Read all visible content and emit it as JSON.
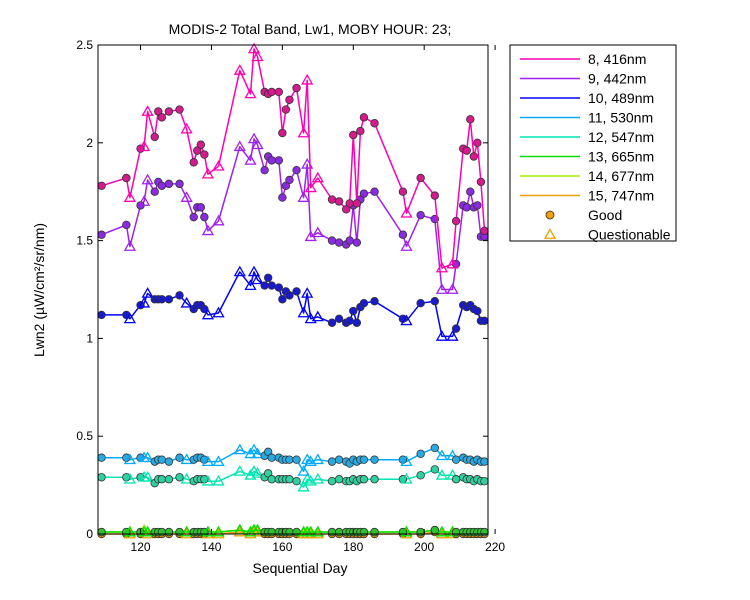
{
  "chart_data": {
    "type": "line",
    "title": "MODIS-2 Total Band, Lw1, MOBY HOUR: 23;",
    "xlabel": "Sequential Day",
    "ylabel": "Lwn2 (µW/cm²/sr/nm)",
    "xlim": [
      108,
      218
    ],
    "ylim": [
      0,
      2.5
    ],
    "xticks": [
      120,
      140,
      160,
      180,
      200,
      220
    ],
    "yticks": [
      0,
      0.5,
      1,
      1.5,
      2,
      2.5
    ],
    "ytick_labels": [
      "0",
      "0.5",
      "1",
      "1.5",
      "2",
      "2.5"
    ],
    "legend_position": "outside-right",
    "x": [
      109,
      116,
      117,
      120,
      121,
      122,
      124,
      125,
      126,
      128,
      131,
      133,
      135,
      136,
      137,
      138,
      139,
      142,
      148,
      151,
      152,
      153,
      155,
      156,
      157,
      159,
      160,
      161,
      162,
      164,
      166,
      167,
      168,
      170,
      174,
      176,
      178,
      179,
      180,
      181,
      182,
      183,
      186,
      194,
      195,
      199,
      203,
      205,
      208,
      209,
      211,
      212,
      213,
      214,
      215,
      216,
      217
    ],
    "series": [
      {
        "name": "8, 416nm",
        "color": "#ff00b0",
        "marker_color": "#d61a8e",
        "values": [
          1.78,
          1.82,
          1.72,
          1.97,
          1.98,
          2.16,
          2.03,
          2.16,
          2.13,
          2.16,
          2.17,
          2.07,
          1.9,
          1.96,
          1.99,
          1.94,
          1.84,
          1.88,
          2.37,
          2.25,
          2.48,
          2.44,
          2.26,
          2.25,
          2.26,
          2.26,
          2.05,
          2.17,
          2.22,
          2.28,
          2.05,
          2.32,
          1.77,
          1.82,
          1.71,
          1.7,
          1.66,
          1.69,
          2.04,
          1.69,
          2.06,
          2.13,
          2.1,
          1.75,
          1.64,
          1.82,
          1.73,
          1.36,
          1.38,
          1.6,
          1.97,
          1.96,
          2.12,
          1.93,
          2.0,
          1.8,
          1.55
        ]
      },
      {
        "name": "9, 442nm",
        "color": "#a020f0",
        "marker_color": "#8a2be2",
        "values": [
          1.53,
          1.58,
          1.47,
          1.68,
          1.7,
          1.81,
          1.75,
          1.8,
          1.78,
          1.79,
          1.79,
          1.72,
          1.62,
          1.67,
          1.67,
          1.62,
          1.55,
          1.6,
          1.98,
          1.91,
          2.02,
          1.99,
          1.86,
          1.93,
          1.91,
          1.91,
          1.72,
          1.78,
          1.81,
          1.86,
          1.72,
          1.89,
          1.52,
          1.54,
          1.5,
          1.49,
          1.48,
          1.5,
          1.68,
          1.49,
          1.71,
          1.74,
          1.75,
          1.53,
          1.47,
          1.63,
          1.61,
          1.25,
          1.25,
          1.38,
          1.68,
          1.67,
          1.75,
          1.67,
          1.68,
          1.52,
          1.52
        ]
      },
      {
        "name": "10, 489nm",
        "color": "#0000ff",
        "marker_color": "#1a1acd",
        "values": [
          1.12,
          1.12,
          1.1,
          1.17,
          1.18,
          1.23,
          1.2,
          1.2,
          1.2,
          1.2,
          1.22,
          1.18,
          1.15,
          1.17,
          1.17,
          1.15,
          1.12,
          1.13,
          1.34,
          1.27,
          1.34,
          1.3,
          1.27,
          1.31,
          1.27,
          1.26,
          1.2,
          1.24,
          1.22,
          1.24,
          1.13,
          1.23,
          1.1,
          1.11,
          1.08,
          1.1,
          1.08,
          1.09,
          1.14,
          1.08,
          1.16,
          1.18,
          1.19,
          1.1,
          1.09,
          1.18,
          1.19,
          1.01,
          1.01,
          1.05,
          1.17,
          1.16,
          1.17,
          1.15,
          1.14,
          1.09,
          1.09
        ]
      },
      {
        "name": "11, 530nm",
        "color": "#00aaff",
        "marker_color": "#2aa8e0",
        "values": [
          0.39,
          0.39,
          0.38,
          0.39,
          0.39,
          0.39,
          0.37,
          0.38,
          0.38,
          0.37,
          0.39,
          0.38,
          0.38,
          0.39,
          0.39,
          0.38,
          0.37,
          0.37,
          0.43,
          0.41,
          0.43,
          0.41,
          0.4,
          0.42,
          0.39,
          0.39,
          0.38,
          0.38,
          0.38,
          0.38,
          0.32,
          0.38,
          0.37,
          0.38,
          0.37,
          0.38,
          0.37,
          0.36,
          0.38,
          0.37,
          0.38,
          0.38,
          0.38,
          0.38,
          0.37,
          0.41,
          0.44,
          0.4,
          0.4,
          0.38,
          0.39,
          0.38,
          0.38,
          0.37,
          0.38,
          0.37,
          0.37
        ]
      },
      {
        "name": "12, 547nm",
        "color": "#00e6b0",
        "marker_color": "#30d0a0",
        "values": [
          0.29,
          0.29,
          0.28,
          0.29,
          0.29,
          0.29,
          0.26,
          0.28,
          0.28,
          0.28,
          0.29,
          0.28,
          0.27,
          0.28,
          0.28,
          0.28,
          0.27,
          0.27,
          0.32,
          0.3,
          0.32,
          0.31,
          0.29,
          0.31,
          0.28,
          0.28,
          0.28,
          0.28,
          0.28,
          0.27,
          0.24,
          0.28,
          0.27,
          0.28,
          0.27,
          0.28,
          0.27,
          0.27,
          0.28,
          0.27,
          0.28,
          0.28,
          0.28,
          0.28,
          0.28,
          0.3,
          0.33,
          0.3,
          0.3,
          0.28,
          0.29,
          0.28,
          0.28,
          0.27,
          0.28,
          0.27,
          0.27
        ]
      },
      {
        "name": "13, 665nm",
        "color": "#00dd00",
        "marker_color": "#30c030",
        "values": [
          0.01,
          0.01,
          0.01,
          0.01,
          0.01,
          0.01,
          0.01,
          0.01,
          0.01,
          0.01,
          0.01,
          0.01,
          0.01,
          0.01,
          0.01,
          0.01,
          0.01,
          0.01,
          0.02,
          0.01,
          0.02,
          0.02,
          0.01,
          0.01,
          0.01,
          0.01,
          0.01,
          0.01,
          0.01,
          0.01,
          0.01,
          0.01,
          0.01,
          0.01,
          0.01,
          0.01,
          0.01,
          0.01,
          0.01,
          0.01,
          0.01,
          0.01,
          0.01,
          0.01,
          0.01,
          0.01,
          0.02,
          0.01,
          0.01,
          0.01,
          0.01,
          0.01,
          0.01,
          0.01,
          0.01,
          0.01,
          0.01
        ]
      },
      {
        "name": "14, 677nm",
        "color": "#aaee00",
        "marker_color": "#a0d020",
        "values": [
          0.01,
          0.01,
          0.01,
          0.01,
          0.02,
          0.01,
          0.01,
          0.01,
          0.01,
          0.01,
          0.01,
          0.01,
          0.01,
          0.01,
          0.01,
          0.01,
          0.01,
          0.01,
          0.02,
          0.01,
          0.02,
          0.02,
          0.01,
          0.01,
          0.01,
          0.01,
          0.01,
          0.01,
          0.01,
          0.01,
          0.01,
          0.01,
          0.01,
          0.01,
          0.01,
          0.01,
          0.01,
          0.01,
          0.01,
          0.01,
          0.01,
          0.01,
          0.01,
          0.01,
          0.01,
          0.01,
          0.02,
          0.01,
          0.01,
          0.01,
          0.01,
          0.01,
          0.01,
          0.01,
          0.01,
          0.01,
          0.01
        ]
      },
      {
        "name": "15, 747nm",
        "color": "#f0a000",
        "marker_color": "#e09000",
        "values": [
          0.0,
          0.0,
          0.0,
          0.0,
          0.01,
          0.0,
          0.0,
          0.0,
          0.0,
          0.0,
          0.0,
          0.0,
          0.0,
          0.0,
          0.0,
          0.0,
          0.0,
          0.0,
          0.01,
          0.0,
          0.01,
          0.01,
          0.0,
          0.0,
          0.0,
          0.0,
          0.0,
          0.0,
          0.0,
          0.0,
          0.0,
          0.0,
          0.0,
          0.0,
          0.0,
          0.0,
          0.0,
          0.0,
          0.0,
          0.0,
          0.0,
          0.0,
          0.0,
          0.0,
          0.0,
          0.0,
          0.01,
          0.0,
          0.0,
          0.0,
          0.0,
          0.0,
          0.0,
          0.0,
          0.0,
          0.0,
          0.0
        ]
      }
    ],
    "quality": [
      "good",
      "good",
      "questionable",
      "good",
      "questionable",
      "questionable",
      "good",
      "good",
      "good",
      "good",
      "good",
      "questionable",
      "good",
      "good",
      "good",
      "good",
      "questionable",
      "questionable",
      "questionable",
      "questionable",
      "questionable",
      "questionable",
      "good",
      "good",
      "good",
      "good",
      "good",
      "good",
      "good",
      "good",
      "questionable",
      "questionable",
      "questionable",
      "questionable",
      "good",
      "good",
      "good",
      "good",
      "good",
      "good",
      "good",
      "good",
      "good",
      "good",
      "questionable",
      "good",
      "good",
      "questionable",
      "questionable",
      "good",
      "good",
      "good",
      "good",
      "good",
      "good",
      "good",
      "good"
    ],
    "legend_markers": [
      {
        "label": "Good",
        "marker": "circle",
        "color": "#f0a000"
      },
      {
        "label": "Questionable",
        "marker": "triangle",
        "color": "#f0a000"
      }
    ]
  }
}
